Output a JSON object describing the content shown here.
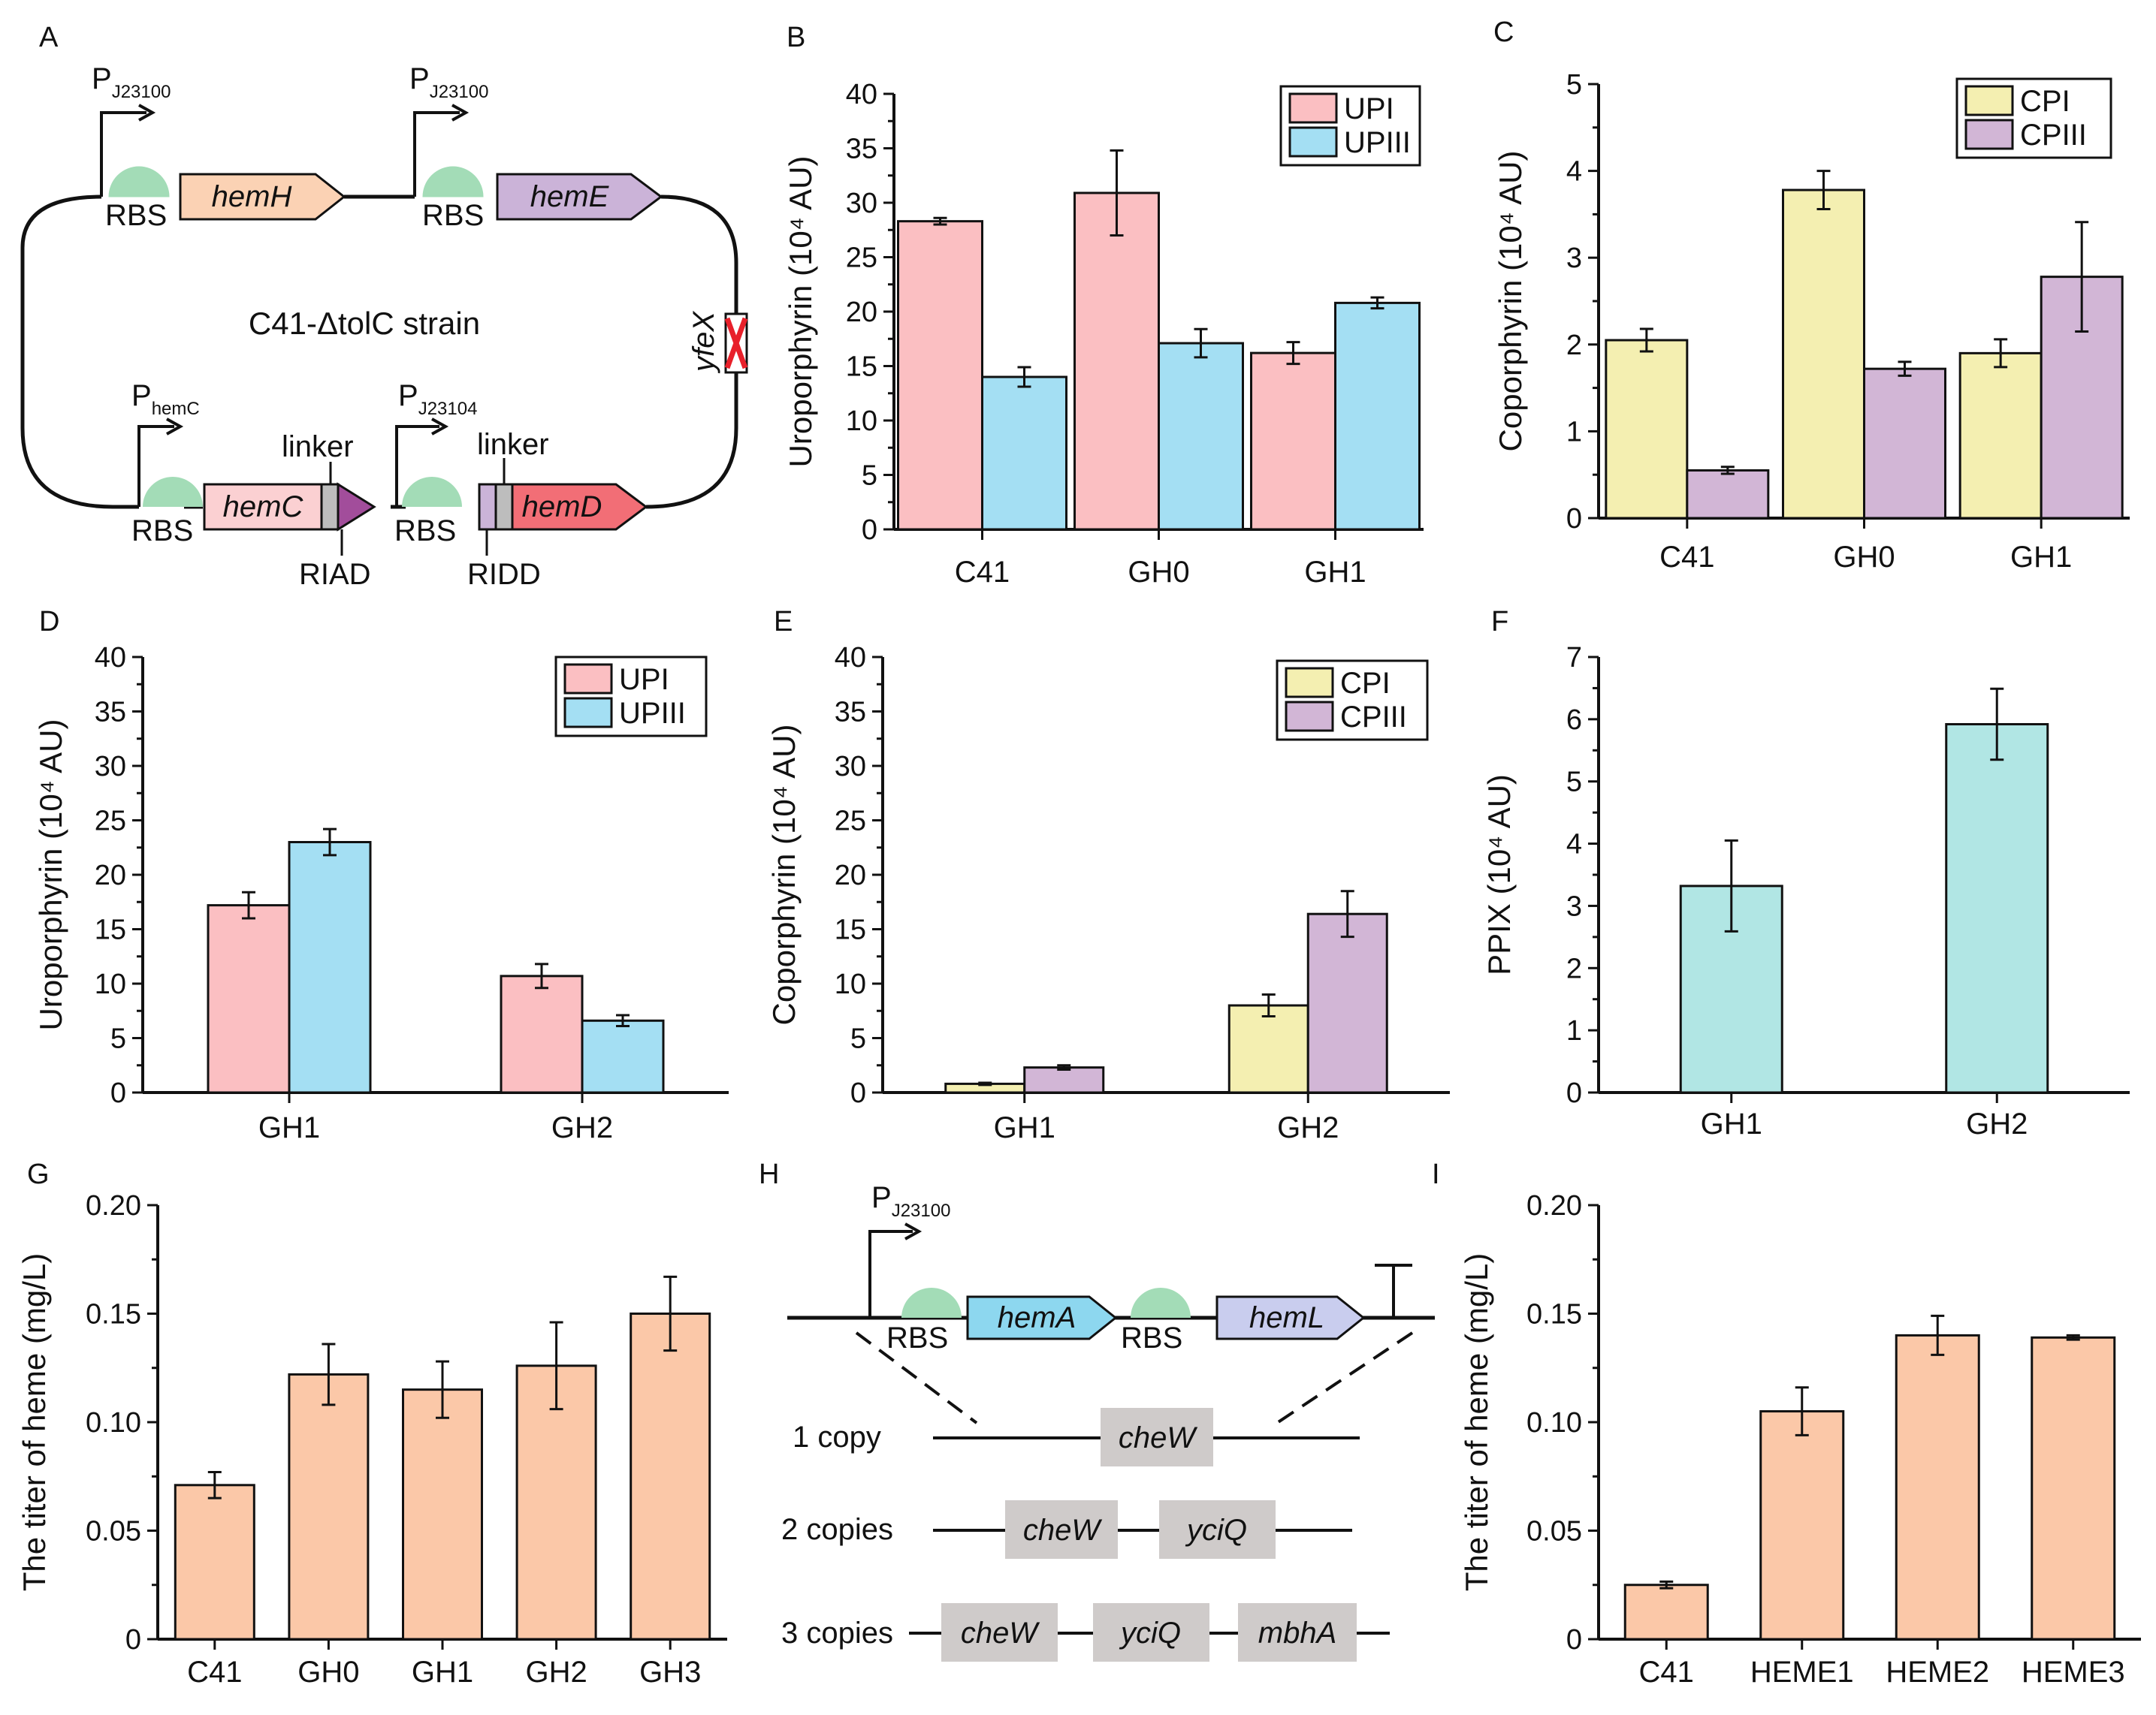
{
  "panel_letters": [
    "A",
    "B",
    "C",
    "D",
    "E",
    "F",
    "G",
    "H",
    "I"
  ],
  "colors": {
    "upi": "#fbbfc2",
    "upiii": "#a4dff3",
    "cpi": "#f4efb1",
    "cpiii": "#d2b6d6",
    "ppix": "#b1e6e4",
    "heme": "#fbc8a8",
    "hemH": "#fbd2b4",
    "hemE": "#cbb3d8",
    "hemC": "#fbd0d2",
    "hemD": "#f26e76",
    "hemA": "#8dd7ef",
    "hemL": "#c9cdee",
    "rbs": "#a3dcb7",
    "cross": "#e8202a",
    "riad": "#a24d9b",
    "gene_box": "#cfcbca",
    "linker": "#bdbdbd"
  },
  "panelA": {
    "promoters": [
      {
        "main": "P",
        "sub": "J23100"
      },
      {
        "main": "P",
        "sub": "J23100"
      },
      {
        "main": "P",
        "sub": "hemC"
      },
      {
        "main": "P",
        "sub": "J23104"
      }
    ],
    "rbs_label": "RBS",
    "genes": [
      "hemH",
      "hemE",
      "hemC",
      "hemD"
    ],
    "strain": "C41-ΔtolC strain",
    "deletion": "yfeX",
    "linker": "linker",
    "riad": "RIAD",
    "ridd": "RIDD"
  },
  "panelH": {
    "promoter": {
      "main": "P",
      "sub": "J23100"
    },
    "rbs_label": "RBS",
    "genes": [
      "hemA",
      "hemL"
    ],
    "rows": [
      {
        "label": "1 copy",
        "sites": [
          "cheW"
        ]
      },
      {
        "label": "2 copies",
        "sites": [
          "cheW",
          "yciQ"
        ]
      },
      {
        "label": "3 copies",
        "sites": [
          "cheW",
          "yciQ",
          "mbhA"
        ]
      }
    ]
  },
  "chart_data": [
    {
      "panel": "B",
      "type": "bar",
      "ylabel": "Uroporphyrin (10⁴ AU)",
      "ylim": [
        0,
        40
      ],
      "yticks": [
        0,
        5,
        10,
        15,
        20,
        25,
        30,
        35,
        40
      ],
      "categories": [
        "C41",
        "GH0",
        "GH1"
      ],
      "legend": "top-right",
      "series": [
        {
          "name": "UPI",
          "values": [
            28.3,
            30.9,
            16.2
          ],
          "errors": [
            0.3,
            3.9,
            1.0
          ],
          "color": "upi"
        },
        {
          "name": "UPIII",
          "values": [
            14.0,
            17.1,
            20.8
          ],
          "errors": [
            0.9,
            1.3,
            0.5
          ],
          "color": "upiii"
        }
      ]
    },
    {
      "panel": "C",
      "type": "bar",
      "ylabel": "Coporphyrin (10⁴ AU)",
      "ylim": [
        0,
        5
      ],
      "yticks": [
        0,
        1,
        2,
        3,
        4,
        5
      ],
      "categories": [
        "C41",
        "GH0",
        "GH1"
      ],
      "legend": "top-right",
      "series": [
        {
          "name": "CPI",
          "values": [
            2.05,
            3.78,
            1.9
          ],
          "errors": [
            0.13,
            0.22,
            0.16
          ],
          "color": "cpi"
        },
        {
          "name": "CPIII",
          "values": [
            0.55,
            1.72,
            2.78
          ],
          "errors": [
            0.04,
            0.08,
            0.63
          ],
          "color": "cpiii"
        }
      ]
    },
    {
      "panel": "D",
      "type": "bar",
      "ylabel": "Uroporphyrin (10⁴ AU)",
      "ylim": [
        0,
        40
      ],
      "yticks": [
        0,
        5,
        10,
        15,
        20,
        25,
        30,
        35,
        40
      ],
      "categories": [
        "GH1",
        "GH2"
      ],
      "legend": "top-right",
      "series": [
        {
          "name": "UPI",
          "values": [
            17.2,
            10.7
          ],
          "errors": [
            1.2,
            1.1
          ],
          "color": "upi"
        },
        {
          "name": "UPIII",
          "values": [
            23.0,
            6.6
          ],
          "errors": [
            1.2,
            0.5
          ],
          "color": "upiii"
        }
      ]
    },
    {
      "panel": "E",
      "type": "bar",
      "ylabel": "Coporphyrin (10⁴ AU)",
      "ylim": [
        0,
        40
      ],
      "yticks": [
        0,
        5,
        10,
        15,
        20,
        25,
        30,
        35,
        40
      ],
      "categories": [
        "GH1",
        "GH2"
      ],
      "legend": "top-right",
      "series": [
        {
          "name": "CPI",
          "values": [
            0.8,
            8.0
          ],
          "errors": [
            0.1,
            1.0
          ],
          "color": "cpi"
        },
        {
          "name": "CPIII",
          "values": [
            2.3,
            16.4
          ],
          "errors": [
            0.2,
            2.1
          ],
          "color": "cpiii"
        }
      ]
    },
    {
      "panel": "F",
      "type": "bar",
      "ylabel": "PPIX (10⁴ AU)",
      "ylim": [
        0,
        7
      ],
      "yticks": [
        0,
        1,
        2,
        3,
        4,
        5,
        6,
        7
      ],
      "categories": [
        "GH1",
        "GH2"
      ],
      "series": [
        {
          "name": "PPIX",
          "values": [
            3.32,
            5.92
          ],
          "errors": [
            0.73,
            0.57
          ],
          "color": "ppix"
        }
      ]
    },
    {
      "panel": "G",
      "type": "bar",
      "ylabel": "The titer of heme  (mg/L)",
      "ylim": [
        0,
        0.2
      ],
      "yticks": [
        0,
        0.05,
        0.1,
        0.15,
        0.2
      ],
      "yticklabels": [
        "0",
        "0.05",
        "0.10",
        "0.15",
        "0.20"
      ],
      "categories": [
        "C41",
        "GH0",
        "GH1",
        "GH2",
        "GH3"
      ],
      "series": [
        {
          "name": "heme",
          "values": [
            0.071,
            0.122,
            0.115,
            0.126,
            0.15
          ],
          "errors": [
            0.006,
            0.014,
            0.013,
            0.02,
            0.017
          ],
          "color": "heme"
        }
      ]
    },
    {
      "panel": "I",
      "type": "bar",
      "ylabel": "The titer of heme  (mg/L)",
      "ylim": [
        0,
        0.2
      ],
      "yticks": [
        0,
        0.05,
        0.1,
        0.15,
        0.2
      ],
      "yticklabels": [
        "0",
        "0.05",
        "0.10",
        "0.15",
        "0.20"
      ],
      "categories": [
        "C41",
        "HEME1",
        "HEME2",
        "HEME3"
      ],
      "series": [
        {
          "name": "heme",
          "values": [
            0.025,
            0.105,
            0.14,
            0.139
          ],
          "errors": [
            0.0015,
            0.011,
            0.009,
            0.001
          ],
          "color": "heme"
        }
      ]
    }
  ]
}
